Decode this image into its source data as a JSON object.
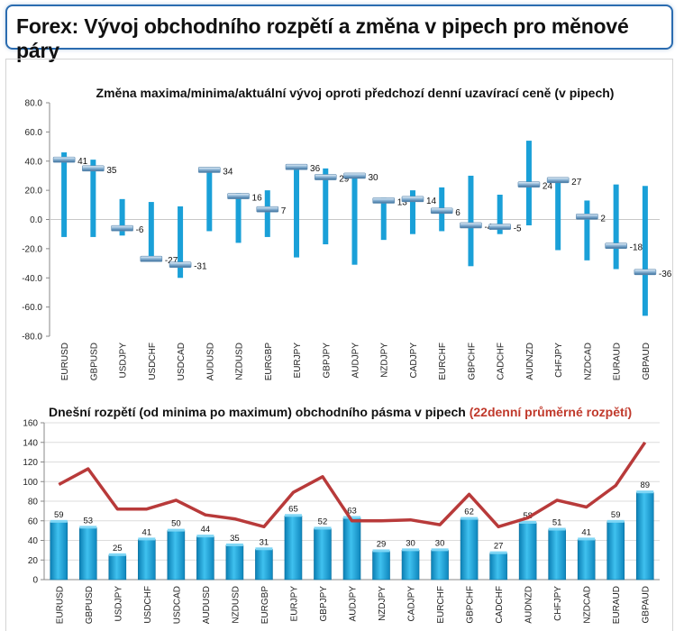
{
  "header": {
    "title": "Forex: Vývoj obchodního rozpětí a změna v pipech pro měnové páry"
  },
  "pairs": [
    "EURUSD",
    "GBPUSD",
    "USDJPY",
    "USDCHF",
    "USDCAD",
    "AUDUSD",
    "NZDUSD",
    "EURGBP",
    "EURJPY",
    "GBPJPY",
    "AUDJPY",
    "NZDJPY",
    "CADJPY",
    "EURCHF",
    "GBPCHF",
    "CADCHF",
    "AUDNZD",
    "CHFJPY",
    "NZDCAD",
    "EURAUD",
    "GBPAUD"
  ],
  "chart_data": [
    {
      "type": "range",
      "title": "Změna maxima/minima/aktuální vývoj oproti předchozí denní uzavírací ceně (v pipech)",
      "ylim": [
        -80,
        80
      ],
      "yticks": [
        "80.0",
        "60.0",
        "40.0",
        "20.0",
        "0.0",
        "-20.0",
        "-40.0",
        "-60.0",
        "-80.0"
      ],
      "categories": [
        "EURUSD",
        "GBPUSD",
        "USDJPY",
        "USDCHF",
        "USDCAD",
        "AUDUSD",
        "NZDUSD",
        "EURGBP",
        "EURJPY",
        "GBPJPY",
        "AUDJPY",
        "NZDJPY",
        "CADJPY",
        "EURCHF",
        "GBPCHF",
        "CADCHF",
        "AUDNZD",
        "CHFJPY",
        "NZDCAD",
        "EURAUD",
        "GBPAUD"
      ],
      "high": [
        46,
        41,
        14,
        12,
        9,
        35,
        18,
        20,
        38,
        35,
        31,
        15,
        20,
        22,
        30,
        17,
        54,
        29,
        13,
        24,
        23
      ],
      "low": [
        -12,
        -12,
        -11,
        -28,
        -40,
        -8,
        -16,
        -12,
        -26,
        -17,
        -31,
        -14,
        -10,
        -8,
        -32,
        -10,
        -4,
        -21,
        -28,
        -34,
        -66
      ],
      "current": [
        41,
        35,
        -6,
        -27,
        -31,
        34,
        16,
        7,
        36,
        29,
        30,
        13,
        14,
        6,
        -4,
        -5,
        24,
        27,
        2,
        -18,
        -36
      ],
      "labels": [
        "41",
        "35",
        "-6",
        "-27",
        "-31",
        "34",
        "16",
        "7",
        "36",
        "29",
        "30",
        "13",
        "14",
        "6",
        "-4",
        "-5",
        "24",
        "27",
        "2",
        "-18",
        "-36"
      ],
      "colors": {
        "bar": "#1aa0d8",
        "marker": "#4a86b4"
      }
    },
    {
      "type": "bar+line",
      "title": "Dnešní rozpětí (od minima po maximum) obchodního pásma v pipech",
      "title_extra": "(22denní průměrné rozpětí)",
      "ylim": [
        0,
        160
      ],
      "yticks": [
        "160",
        "140",
        "120",
        "100",
        "80",
        "60",
        "40",
        "20",
        "0"
      ],
      "categories": [
        "EURUSD",
        "GBPUSD",
        "USDJPY",
        "USDCHF",
        "USDCAD",
        "AUDUSD",
        "NZDUSD",
        "EURGBP",
        "EURJPY",
        "GBPJPY",
        "AUDJPY",
        "NZDJPY",
        "CADJPY",
        "EURCHF",
        "GBPCHF",
        "CADCHF",
        "AUDNZD",
        "CHFJPY",
        "NZDCAD",
        "EURAUD",
        "GBPAUD"
      ],
      "values": [
        59,
        53,
        25,
        41,
        50,
        44,
        35,
        31,
        65,
        52,
        63,
        29,
        30,
        30,
        62,
        27,
        58,
        51,
        41,
        59,
        89
      ],
      "labels": [
        "59",
        "53",
        "25",
        "41",
        "50",
        "44",
        "35",
        "31",
        "65",
        "52",
        "63",
        "29",
        "30",
        "30",
        "62",
        "27",
        "58",
        "51",
        "41",
        "59",
        "89"
      ],
      "average": [
        97,
        113,
        72,
        72,
        81,
        66,
        62,
        54,
        89,
        105,
        60,
        60,
        61,
        56,
        87,
        54,
        63,
        81,
        74,
        96,
        140
      ],
      "colors": {
        "bar": "#1aa0d8",
        "line": "#b83a3a",
        "title_extra": "#c0392b"
      }
    }
  ]
}
